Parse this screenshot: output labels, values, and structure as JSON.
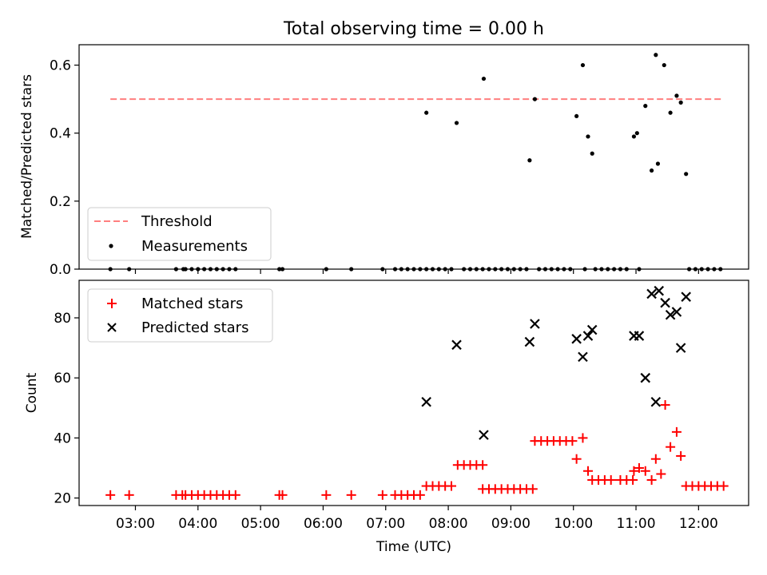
{
  "figure": {
    "title": "Total observing time = 0.00 h",
    "xlabel": "Time (UTC)"
  },
  "colors": {
    "threshold": "#ff7f7f",
    "measurements": "#000000",
    "matched": "#ff0000",
    "predicted": "#000000"
  },
  "chart_data": [
    {
      "type": "scatter",
      "panel": "top",
      "ylabel": "Matched/Predicted stars",
      "xlim": [
        "02:06",
        "12:48"
      ],
      "ylim": [
        0,
        0.66
      ],
      "x_ticks": [
        "03:00",
        "04:00",
        "05:00",
        "06:00",
        "07:00",
        "08:00",
        "09:00",
        "10:00",
        "11:00",
        "12:00"
      ],
      "y_ticks": [
        "0.0",
        "0.2",
        "0.4",
        "0.6"
      ],
      "legend": {
        "placement": "lower-left",
        "entries": [
          "Threshold",
          "Measurements"
        ]
      },
      "threshold": {
        "name": "Threshold",
        "value": 0.5,
        "x_range": [
          "02:36",
          "12:22"
        ]
      },
      "series": [
        {
          "name": "Measurements",
          "points": [
            [
              "02:36",
              0
            ],
            [
              "02:54",
              0
            ],
            [
              "03:39",
              0
            ],
            [
              "03:46",
              0
            ],
            [
              "03:48",
              0
            ],
            [
              "03:54",
              0
            ],
            [
              "04:00",
              0
            ],
            [
              "04:06",
              0
            ],
            [
              "04:12",
              0
            ],
            [
              "04:18",
              0
            ],
            [
              "04:24",
              0
            ],
            [
              "04:30",
              0
            ],
            [
              "04:36",
              0
            ],
            [
              "05:18",
              0
            ],
            [
              "05:21",
              0
            ],
            [
              "06:03",
              0
            ],
            [
              "06:27",
              0
            ],
            [
              "06:57",
              0
            ],
            [
              "07:09",
              0
            ],
            [
              "07:15",
              0
            ],
            [
              "07:21",
              0
            ],
            [
              "07:27",
              0
            ],
            [
              "07:33",
              0
            ],
            [
              "07:39",
              0
            ],
            [
              "07:39",
              0.46
            ],
            [
              "07:45",
              0
            ],
            [
              "07:51",
              0
            ],
            [
              "07:57",
              0
            ],
            [
              "08:03",
              0
            ],
            [
              "08:08",
              0.43
            ],
            [
              "08:15",
              0
            ],
            [
              "08:21",
              0
            ],
            [
              "08:27",
              0
            ],
            [
              "08:33",
              0
            ],
            [
              "08:34",
              0.56
            ],
            [
              "08:39",
              0
            ],
            [
              "08:45",
              0
            ],
            [
              "08:51",
              0
            ],
            [
              "08:57",
              0
            ],
            [
              "09:03",
              0
            ],
            [
              "09:09",
              0
            ],
            [
              "09:15",
              0
            ],
            [
              "09:18",
              0.32
            ],
            [
              "09:23",
              0.5
            ],
            [
              "09:27",
              0
            ],
            [
              "09:33",
              0
            ],
            [
              "09:39",
              0
            ],
            [
              "09:45",
              0
            ],
            [
              "09:51",
              0
            ],
            [
              "09:57",
              0
            ],
            [
              "10:03",
              0.45
            ],
            [
              "10:09",
              0.6
            ],
            [
              "10:11",
              0
            ],
            [
              "10:14",
              0.39
            ],
            [
              "10:18",
              0.34
            ],
            [
              "10:21",
              0
            ],
            [
              "10:27",
              0
            ],
            [
              "10:33",
              0
            ],
            [
              "10:39",
              0
            ],
            [
              "10:45",
              0
            ],
            [
              "10:51",
              0
            ],
            [
              "10:58",
              0.39
            ],
            [
              "11:01",
              0.4
            ],
            [
              "11:03",
              0
            ],
            [
              "11:09",
              0.48
            ],
            [
              "11:15",
              0.29
            ],
            [
              "11:19",
              0.63
            ],
            [
              "11:21",
              0.31
            ],
            [
              "11:27",
              0.6
            ],
            [
              "11:33",
              0.46
            ],
            [
              "11:39",
              0.51
            ],
            [
              "11:43",
              0.49
            ],
            [
              "11:48",
              0.28
            ],
            [
              "11:51",
              0
            ],
            [
              "11:57",
              0
            ],
            [
              "12:03",
              0
            ],
            [
              "12:09",
              0
            ],
            [
              "12:15",
              0
            ],
            [
              "12:21",
              0
            ]
          ]
        }
      ]
    },
    {
      "type": "scatter",
      "panel": "bottom",
      "xlabel": "Time (UTC)",
      "ylabel": "Count",
      "xlim": [
        "02:06",
        "12:48"
      ],
      "ylim": [
        17.5,
        92.5
      ],
      "x_ticks": [
        "03:00",
        "04:00",
        "05:00",
        "06:00",
        "07:00",
        "08:00",
        "09:00",
        "10:00",
        "11:00",
        "12:00"
      ],
      "y_ticks": [
        "20",
        "40",
        "60",
        "80"
      ],
      "legend": {
        "placement": "upper-left",
        "entries": [
          "Matched stars",
          "Predicted stars"
        ]
      },
      "series": [
        {
          "name": "Matched stars",
          "marker": "plus",
          "points": [
            [
              "02:36",
              21
            ],
            [
              "02:54",
              21
            ],
            [
              "03:39",
              21
            ],
            [
              "03:45",
              21
            ],
            [
              "03:48",
              21
            ],
            [
              "03:54",
              21
            ],
            [
              "04:00",
              21
            ],
            [
              "04:06",
              21
            ],
            [
              "04:12",
              21
            ],
            [
              "04:18",
              21
            ],
            [
              "04:24",
              21
            ],
            [
              "04:30",
              21
            ],
            [
              "04:36",
              21
            ],
            [
              "05:18",
              21
            ],
            [
              "05:21",
              21
            ],
            [
              "06:03",
              21
            ],
            [
              "06:27",
              21
            ],
            [
              "06:57",
              21
            ],
            [
              "07:09",
              21
            ],
            [
              "07:15",
              21
            ],
            [
              "07:21",
              21
            ],
            [
              "07:27",
              21
            ],
            [
              "07:33",
              21
            ],
            [
              "07:39",
              24
            ],
            [
              "07:45",
              24
            ],
            [
              "07:51",
              24
            ],
            [
              "07:57",
              24
            ],
            [
              "08:03",
              24
            ],
            [
              "08:09",
              31
            ],
            [
              "08:15",
              31
            ],
            [
              "08:21",
              31
            ],
            [
              "08:27",
              31
            ],
            [
              "08:33",
              31
            ],
            [
              "08:33",
              23
            ],
            [
              "08:39",
              23
            ],
            [
              "08:45",
              23
            ],
            [
              "08:51",
              23
            ],
            [
              "08:57",
              23
            ],
            [
              "09:03",
              23
            ],
            [
              "09:09",
              23
            ],
            [
              "09:15",
              23
            ],
            [
              "09:21",
              23
            ],
            [
              "09:23",
              39
            ],
            [
              "09:29",
              39
            ],
            [
              "09:35",
              39
            ],
            [
              "09:41",
              39
            ],
            [
              "09:47",
              39
            ],
            [
              "09:53",
              39
            ],
            [
              "09:59",
              39
            ],
            [
              "10:03",
              33
            ],
            [
              "10:09",
              40
            ],
            [
              "10:14",
              29
            ],
            [
              "10:18",
              26
            ],
            [
              "10:24",
              26
            ],
            [
              "10:30",
              26
            ],
            [
              "10:36",
              26
            ],
            [
              "10:45",
              26
            ],
            [
              "10:51",
              26
            ],
            [
              "10:57",
              26
            ],
            [
              "10:58",
              29
            ],
            [
              "11:03",
              30
            ],
            [
              "11:09",
              29
            ],
            [
              "11:15",
              26
            ],
            [
              "11:19",
              33
            ],
            [
              "11:24",
              28
            ],
            [
              "11:28",
              51
            ],
            [
              "11:33",
              37
            ],
            [
              "11:39",
              42
            ],
            [
              "11:43",
              34
            ],
            [
              "11:48",
              24
            ],
            [
              "11:54",
              24
            ],
            [
              "12:00",
              24
            ],
            [
              "12:06",
              24
            ],
            [
              "12:12",
              24
            ],
            [
              "12:18",
              24
            ],
            [
              "12:24",
              24
            ]
          ]
        },
        {
          "name": "Predicted stars",
          "marker": "x",
          "points": [
            [
              "07:39",
              52
            ],
            [
              "08:08",
              71
            ],
            [
              "08:34",
              41
            ],
            [
              "09:18",
              72
            ],
            [
              "09:23",
              78
            ],
            [
              "10:03",
              73
            ],
            [
              "10:09",
              67
            ],
            [
              "10:14",
              74
            ],
            [
              "10:18",
              76
            ],
            [
              "10:58",
              74
            ],
            [
              "11:03",
              74
            ],
            [
              "11:09",
              60
            ],
            [
              "11:15",
              88
            ],
            [
              "11:19",
              52
            ],
            [
              "11:22",
              89
            ],
            [
              "11:28",
              85
            ],
            [
              "11:33",
              81
            ],
            [
              "11:39",
              82
            ],
            [
              "11:43",
              70
            ],
            [
              "11:48",
              87
            ]
          ]
        }
      ]
    }
  ]
}
